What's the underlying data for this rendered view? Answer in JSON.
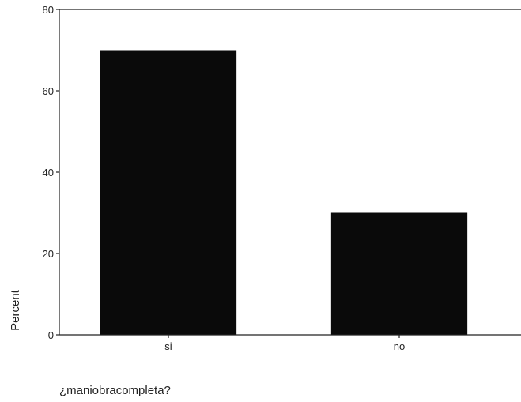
{
  "chart_data": {
    "type": "bar",
    "categories": [
      "si",
      "no"
    ],
    "values": [
      70,
      30
    ],
    "ylabel": "Percent",
    "xlabel": "¿maniobracompleta?",
    "ylim": [
      0,
      80
    ],
    "yticks": [
      0,
      20,
      40,
      60,
      80
    ],
    "grid": false,
    "bar_color": "#0a0a0a"
  }
}
